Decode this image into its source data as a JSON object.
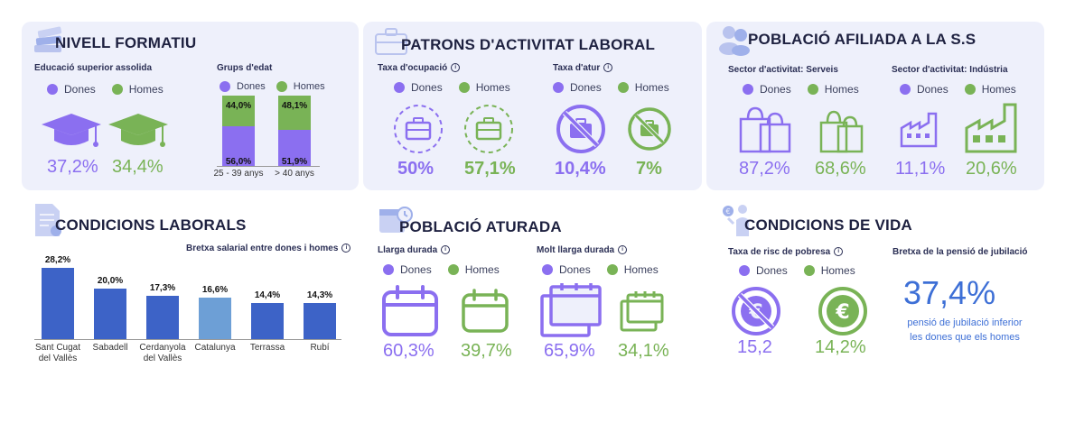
{
  "nivell": {
    "title": "NIVELL FORMATIU",
    "sub1": "Educació superior assolida",
    "sub2": "Grups d'edat",
    "dones": "Dones",
    "homes": "Homes",
    "dones_val": "37,2%",
    "homes_val": "34,4%",
    "chart_data": {
      "type": "bar",
      "categories": [
        "25 - 39 anys",
        "> 40 anys"
      ],
      "series": [
        {
          "name": "Dones",
          "values": [
            56.0,
            51.9
          ],
          "labels": [
            "56,0%",
            "51,9%"
          ]
        },
        {
          "name": "Homes",
          "values": [
            44.0,
            48.1
          ],
          "labels": [
            "44,0%",
            "48,1%"
          ]
        }
      ],
      "stacked": true,
      "ylim": [
        0,
        100
      ]
    }
  },
  "patrons": {
    "title": "PATRONS D'ACTIVITAT LABORAL",
    "sub1": "Taxa d'ocupació",
    "sub2": "Taxa d'atur",
    "dones": "Dones",
    "homes": "Homes",
    "ocup_dones": "50%",
    "ocup_homes": "57,1%",
    "atur_dones": "10,4%",
    "atur_homes": "7%"
  },
  "afiliada": {
    "title": "POBLACIÓ AFILIADA A LA S.S",
    "sub1": "Sector d'activitat: Serveis",
    "sub2": "Sector d'activitat: Indústria",
    "dones": "Dones",
    "homes": "Homes",
    "serveis_dones": "87,2%",
    "serveis_homes": "68,6%",
    "industria_dones": "11,1%",
    "industria_homes": "20,6%"
  },
  "condicions": {
    "title": "CONDICIONS LABORALS",
    "sub": "Bretxa salarial entre dones i homes",
    "chart_data": {
      "type": "bar",
      "categories": [
        "Sant Cugat del Vallès",
        "Sabadell",
        "Cerdanyola del Vallès",
        "Catalunya",
        "Terrassa",
        "Rubí"
      ],
      "category_lines": [
        [
          "Sant Cugat",
          "del Vallès"
        ],
        [
          "Sabadell"
        ],
        [
          "Cerdanyola",
          "del Vallès"
        ],
        [
          "Catalunya"
        ],
        [
          "Terrassa"
        ],
        [
          "Rubí"
        ]
      ],
      "values": [
        28.2,
        20.0,
        17.3,
        16.6,
        14.4,
        14.3
      ],
      "labels": [
        "28,2%",
        "20,0%",
        "17,3%",
        "16,6%",
        "14,4%",
        "14,3%"
      ],
      "highlight": "Catalunya",
      "colors": {
        "bar": "#3d63c7",
        "highlight": "#6d9fd6"
      }
    }
  },
  "aturada": {
    "title": "POBLACIÓ ATURADA",
    "sub1": "Llarga durada",
    "sub2": "Molt llarga durada",
    "dones": "Dones",
    "homes": "Homes",
    "llarga_dones": "60,3%",
    "llarga_homes": "39,7%",
    "molt_dones": "65,9%",
    "molt_homes": "34,1%"
  },
  "vida": {
    "title": "CONDICIONS DE VIDA",
    "sub1": "Taxa de risc de pobresa",
    "sub2": "Bretxa de la pensió de jubilació",
    "dones": "Dones",
    "homes": "Homes",
    "risc_dones": "15,2",
    "risc_homes": "14,2%",
    "bretxa_val": "37,4%",
    "bretxa_text1": "pensió de jubilació inferior",
    "bretxa_text2": "les dones que els homes"
  },
  "colors": {
    "dones": "#8b6ff0",
    "homes": "#79b356",
    "card": "#eef0fb",
    "accent": "#3d63c7"
  }
}
